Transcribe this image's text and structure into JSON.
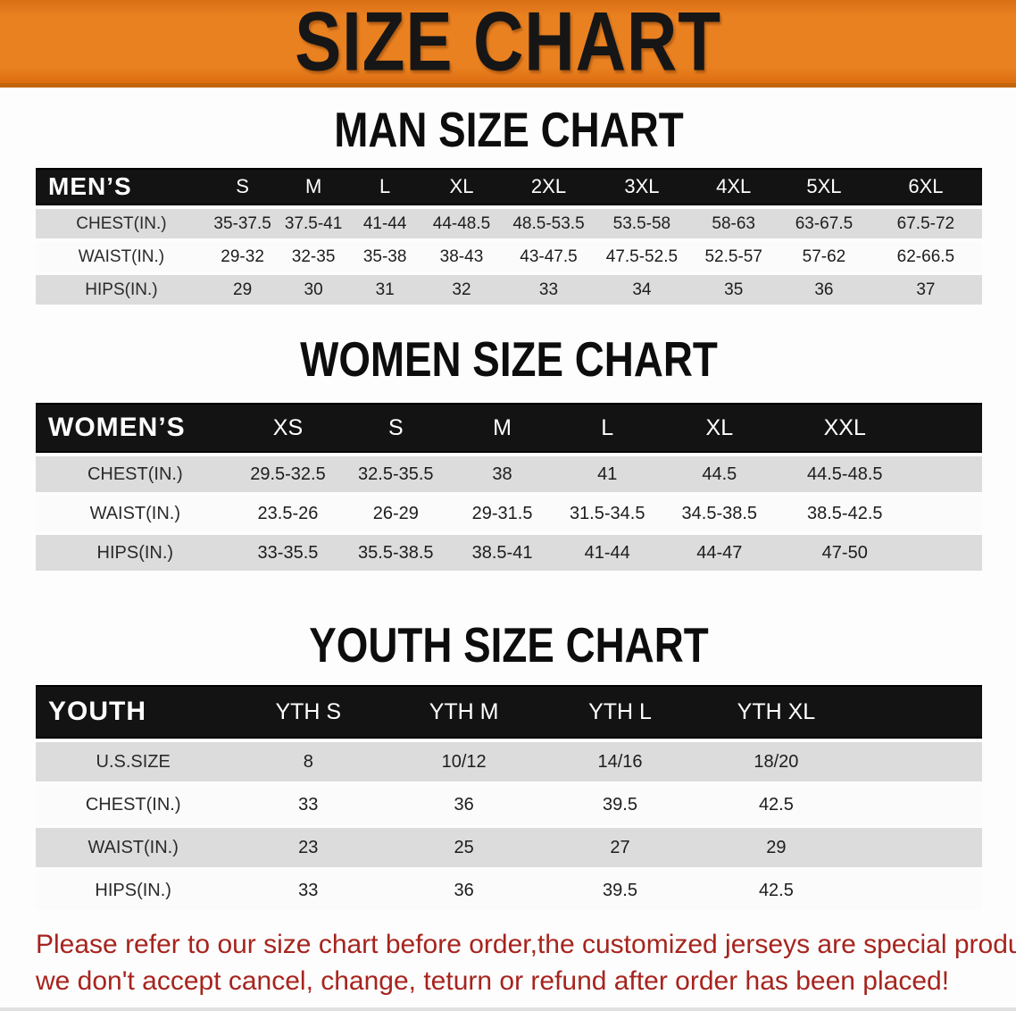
{
  "banner": {
    "title": "SIZE CHART"
  },
  "chart_data": [
    {
      "type": "table",
      "title": "MAN SIZE CHART",
      "header_label": "MEN’S",
      "columns": [
        "S",
        "M",
        "L",
        "XL",
        "2XL",
        "3XL",
        "4XL",
        "5XL",
        "6XL"
      ],
      "rows": [
        {
          "label": "CHEST(IN.)",
          "values": [
            "35-37.5",
            "37.5-41",
            "41-44",
            "44-48.5",
            "48.5-53.5",
            "53.5-58",
            "58-63",
            "63-67.5",
            "67.5-72"
          ]
        },
        {
          "label": "WAIST(IN.)",
          "values": [
            "29-32",
            "32-35",
            "35-38",
            "38-43",
            "43-47.5",
            "47.5-52.5",
            "52.5-57",
            "57-62",
            "62-66.5"
          ]
        },
        {
          "label": "HIPS(IN.)",
          "values": [
            "29",
            "30",
            "31",
            "32",
            "33",
            "34",
            "35",
            "36",
            "37"
          ]
        }
      ]
    },
    {
      "type": "table",
      "title": "WOMEN SIZE CHART",
      "header_label": "WOMEN’S",
      "columns": [
        "XS",
        "S",
        "M",
        "L",
        "XL",
        "XXL"
      ],
      "rows": [
        {
          "label": "CHEST(IN.)",
          "values": [
            "29.5-32.5",
            "32.5-35.5",
            "38",
            "41",
            "44.5",
            "44.5-48.5"
          ]
        },
        {
          "label": "WAIST(IN.)",
          "values": [
            "23.5-26",
            "26-29",
            "29-31.5",
            "31.5-34.5",
            "34.5-38.5",
            "38.5-42.5"
          ]
        },
        {
          "label": "HIPS(IN.)",
          "values": [
            "33-35.5",
            "35.5-38.5",
            "38.5-41",
            "41-44",
            "44-47",
            "47-50"
          ]
        }
      ]
    },
    {
      "type": "table",
      "title": "YOUTH SIZE CHART",
      "header_label": "YOUTH",
      "columns": [
        "YTH S",
        "YTH M",
        "YTH L",
        "YTH XL"
      ],
      "rows": [
        {
          "label": "U.S.SIZE",
          "values": [
            "8",
            "10/12",
            "14/16",
            "18/20"
          ]
        },
        {
          "label": "CHEST(IN.)",
          "values": [
            "33",
            "36",
            "39.5",
            "42.5"
          ]
        },
        {
          "label": "WAIST(IN.)",
          "values": [
            "23",
            "25",
            "27",
            "29"
          ]
        },
        {
          "label": "HIPS(IN.)",
          "values": [
            "33",
            "36",
            "39.5",
            "42.5"
          ]
        }
      ]
    }
  ],
  "disclaimer": {
    "line1": "Please refer to our size chart before order,the customized jerseys are special products,",
    "line2": "we don't accept cancel, change, teturn or refund after order has been placed!"
  },
  "colors": {
    "banner_orange": "#EA8120",
    "header_black": "#131313",
    "row_gray": "#DCDCDC",
    "disclaimer_red": "#A6241E"
  }
}
